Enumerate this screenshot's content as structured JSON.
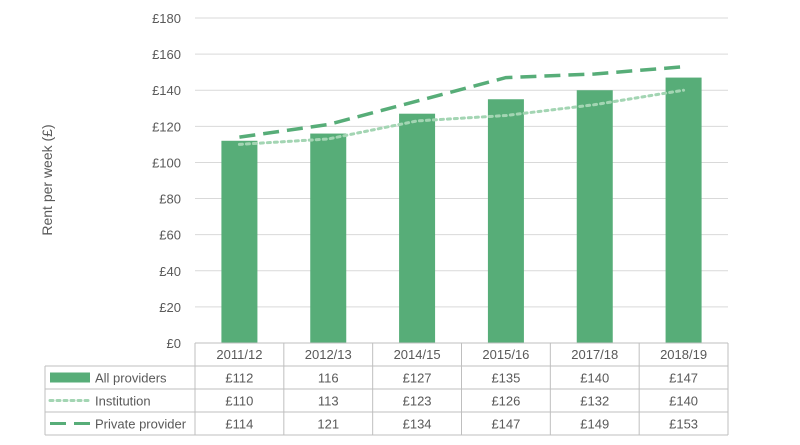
{
  "chart_data": {
    "type": "bar",
    "ylabel": "Rent per week (£)",
    "ylim": [
      0,
      180
    ],
    "yticks": [
      "£0",
      "£20",
      "£40",
      "£60",
      "£80",
      "£100",
      "£120",
      "£140",
      "£160",
      "£180"
    ],
    "ytick_values": [
      0,
      20,
      40,
      60,
      80,
      100,
      120,
      140,
      160,
      180
    ],
    "grid": true,
    "legend_placement": "data-table",
    "categories": [
      "2011/12",
      "2012/13",
      "2014/15",
      "2015/16",
      "2017/18",
      "2018/19"
    ],
    "series": [
      {
        "name": "All providers",
        "type": "bar",
        "style": "solid",
        "color": "#57ad78",
        "values": [
          112,
          116,
          127,
          135,
          140,
          147
        ],
        "table_labels": [
          "£112",
          "116",
          "£127",
          "£135",
          "£140",
          "£147"
        ]
      },
      {
        "name": "Institution",
        "type": "line",
        "style": "dotted",
        "color": "#a3d5b3",
        "values": [
          110,
          113,
          123,
          126,
          132,
          140
        ],
        "table_labels": [
          "£110",
          "113",
          "£123",
          "£126",
          "£132",
          "£140"
        ]
      },
      {
        "name": "Private provider",
        "type": "line",
        "style": "dashed",
        "color": "#57ad78",
        "values": [
          114,
          121,
          134,
          147,
          149,
          153
        ],
        "table_labels": [
          "£114",
          "121",
          "£134",
          "£147",
          "£149",
          "£153"
        ]
      }
    ]
  }
}
